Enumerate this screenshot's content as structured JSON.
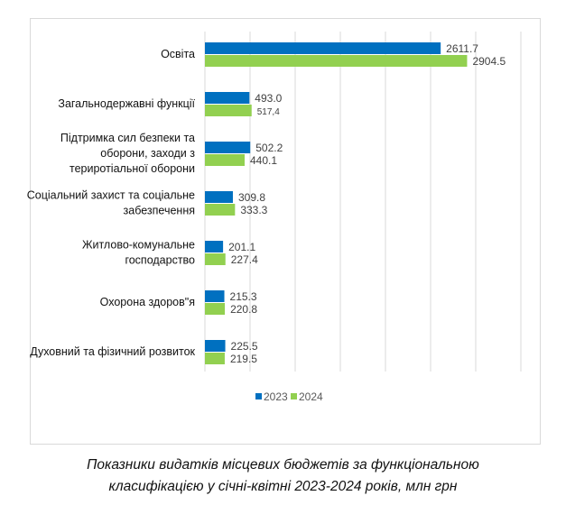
{
  "chart_data": {
    "type": "bar",
    "orientation": "horizontal",
    "categories": [
      "Освіта",
      "Загальнодержавні функції",
      "Підтримка сил безпеки та оборони, заходи з териротіальної оборони",
      "Соціальний захист та соціальне забезпечення",
      "Житлово-комунальне господарство",
      "Охорона здоров\"я",
      "Духовний та фізичний розвиток"
    ],
    "category_lines": [
      [
        "Освіта"
      ],
      [
        "Загальнодержавні функції"
      ],
      [
        "Підтримка сил безпеки та",
        "оборони, заходи з",
        "териротіальної оборони"
      ],
      [
        "Соціальний захист та соціальне",
        "забезпечення"
      ],
      [
        "Житлово-комунальне",
        "господарство"
      ],
      [
        "Охорона здоров\"я"
      ],
      [
        "Духовний та фізичний розвиток"
      ]
    ],
    "series": [
      {
        "name": "2023",
        "color": "#0070c0",
        "values": [
          2611.7,
          493.0,
          502.2,
          309.8,
          201.1,
          215.3,
          225.5
        ],
        "labels": [
          "2611.7",
          "493.0",
          "502.2",
          "309.8",
          "201.1",
          "215.3",
          "225.5"
        ]
      },
      {
        "name": "2024",
        "color": "#92d050",
        "values": [
          2904.5,
          517.4,
          440.1,
          333.3,
          227.4,
          220.8,
          219.5
        ],
        "labels": [
          "2904.5",
          "517,4",
          "440.1",
          "333.3",
          "227.4",
          "220.8",
          "219.5"
        ]
      }
    ],
    "xlim": [
      0,
      3500
    ],
    "grid": true,
    "legend": "bottom",
    "title": ""
  },
  "caption": {
    "line1": "Показники видатків місцевих бюджетів за функціональною",
    "line2": "класифікацією у січні-квітні 2023-2024 років, млн грн"
  }
}
